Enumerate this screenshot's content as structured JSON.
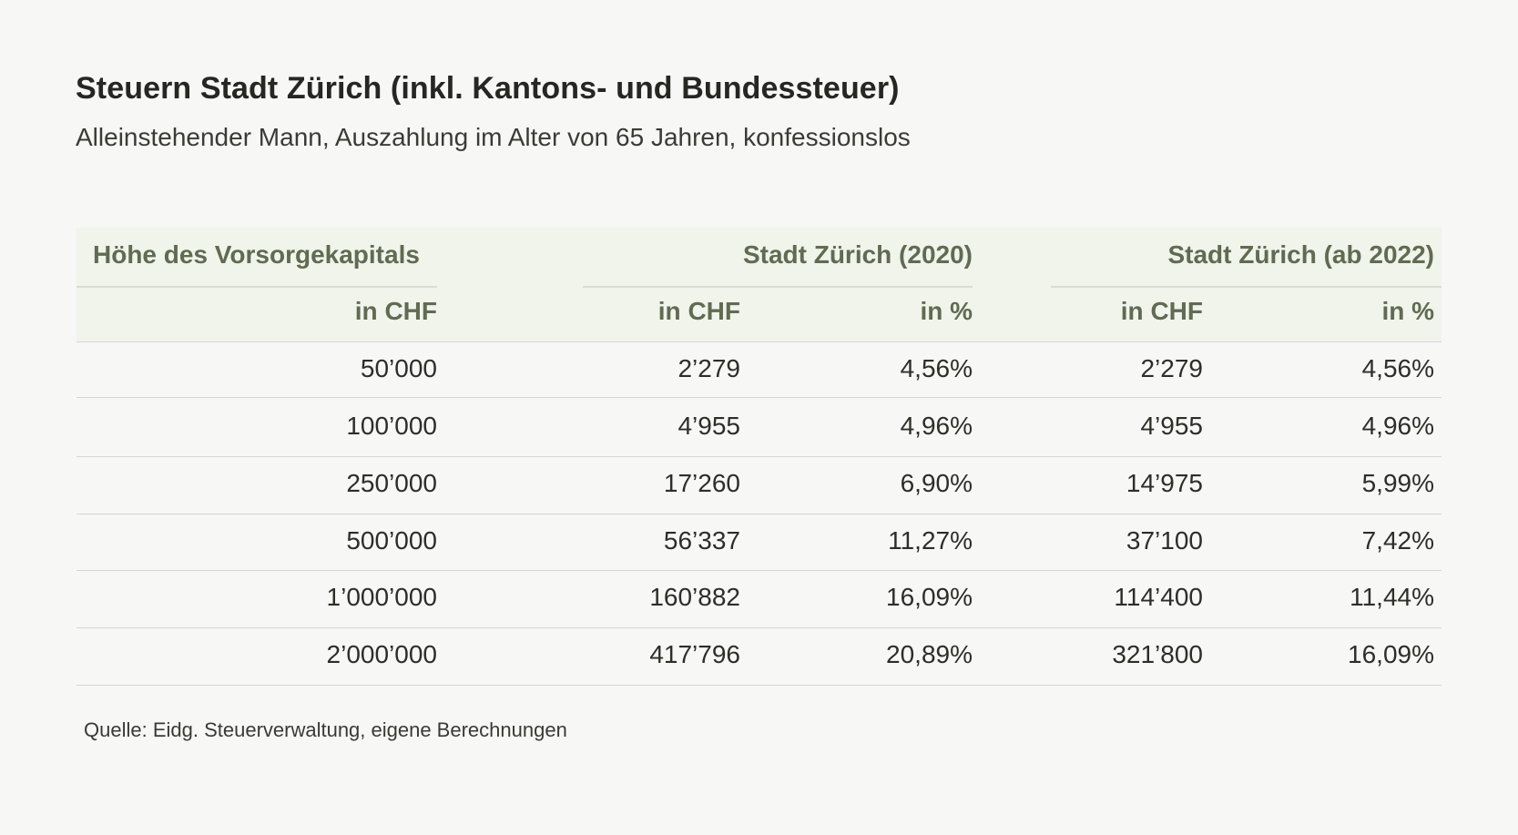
{
  "title": "Steuern Stadt Zürich (inkl. Kantons- und Bundessteuer)",
  "subtitle": "Alleinstehender Mann, Auszahlung im Alter von 65 Jahren, konfessionslos",
  "table": {
    "group_headers": {
      "capital": "Höhe des Vorsorgekapitals",
      "year2020": "Stadt Zürich (2020)",
      "year2022": "Stadt Zürich (ab 2022)"
    },
    "sub_headers": {
      "capital_chf": "in CHF",
      "chf_2020": "in CHF",
      "pct_2020": "in %",
      "chf_2022": "in CHF",
      "pct_2022": "in %"
    },
    "rows": [
      {
        "capital": "50’000",
        "chf_2020": "2’279",
        "pct_2020": "4,56%",
        "chf_2022": "2’279",
        "pct_2022": "4,56%"
      },
      {
        "capital": "100’000",
        "chf_2020": "4’955",
        "pct_2020": "4,96%",
        "chf_2022": "4’955",
        "pct_2022": "4,96%"
      },
      {
        "capital": "250’000",
        "chf_2020": "17’260",
        "pct_2020": "6,90%",
        "chf_2022": "14’975",
        "pct_2022": "5,99%"
      },
      {
        "capital": "500’000",
        "chf_2020": "56’337",
        "pct_2020": "11,27%",
        "chf_2022": "37’100",
        "pct_2022": "7,42%"
      },
      {
        "capital": "1’000’000",
        "chf_2020": "160’882",
        "pct_2020": "16,09%",
        "chf_2022": "114’400",
        "pct_2022": "11,44%"
      },
      {
        "capital": "2’000’000",
        "chf_2020": "417’796",
        "pct_2020": "20,89%",
        "chf_2022": "321’800",
        "pct_2022": "16,09%"
      }
    ]
  },
  "source": "Quelle: Eidg. Steuerverwaltung, eigene Berechnungen"
}
